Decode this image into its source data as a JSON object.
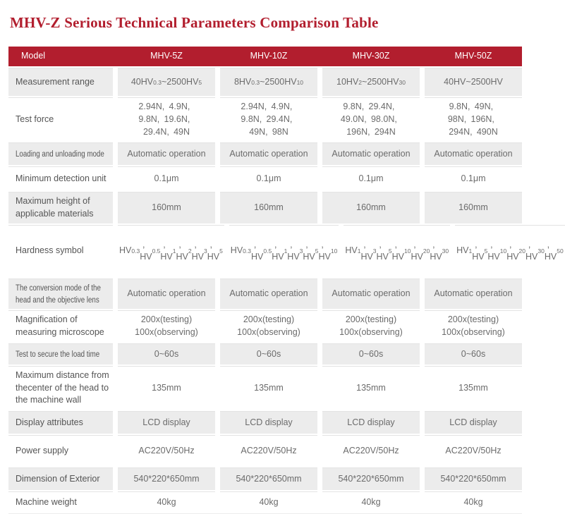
{
  "page": {
    "title": "MHV-Z Serious Technical Parameters Comparison Table"
  },
  "colors": {
    "accent": "#b21e2e",
    "row_alt_bg": "#ececec",
    "row_bg": "#ffffff",
    "label_text": "#555555",
    "value_text": "#6b6b6b",
    "line": "#e3e3e3",
    "header_text": "#ffffff"
  },
  "table": {
    "header": {
      "model_label": "Model",
      "columns": [
        "MHV-5Z",
        "MHV-10Z",
        "MHV-30Z",
        "MHV-50Z"
      ]
    },
    "rows": [
      {
        "label": "Measurement range",
        "values": [
          "40HV{0.3}~2500HV{5}",
          "8HV{0.3}~2500HV{10}",
          "10HV{2}~2500HV{30}",
          "40HV~2500HV"
        ]
      },
      {
        "label": "Test force",
        "values": [
          "2.94N、4.9N、\n9.8N、19.6N、\n29.4N、49N",
          "2.94N、4.9N、\n9.8N、29.4N、\n49N、98N",
          "9.8N、29.4N、\n49.0N、98.0N、\n196N、294N",
          "9.8N、49N、\n98N、196N、\n294N、490N"
        ]
      },
      {
        "label": "Loading and unloading mode",
        "values": [
          "Automatic operation",
          "Automatic operation",
          "Automatic operation",
          "Automatic operation"
        ]
      },
      {
        "label": "Minimum detection unit",
        "values": [
          "0.1μm",
          "0.1μm",
          "0.1μm",
          "0.1μm"
        ]
      },
      {
        "label": "Maximum height of applicable materials",
        "values": [
          "160mm",
          "160mm",
          "160mm",
          "160mm"
        ]
      },
      {
        "label": "Hardness symbol",
        "values": [
          "HV{0.3}、HV{0.5}、\nHV{1}、HV{2}、\nHV{3}、HV{5}",
          "HV{0.3}、HV{0.5}、\nHV{1}、HV{3}、\nHV{5}、HV{10}",
          "HV{1}、HV{3}、\nHV{5}、HV{10}、\nHV{20}、HV{30}",
          "HV{1}、HV{5}、\nHV{10}、HV{20}、\nHV{30}、HV{50}"
        ]
      },
      {
        "label": "The conversion mode of the\nhead and the objective lens",
        "values": [
          "Automatic operation",
          "Automatic operation",
          "Automatic operation",
          "Automatic operation"
        ]
      },
      {
        "label": "Magnification of measuring microscope",
        "values": [
          "200x(testing)\n100x(observing)",
          "200x(testing)\n100x(observing)",
          "200x(testing)\n100x(observing)",
          "200x(testing)\n100x(observing)"
        ]
      },
      {
        "label": "Test to secure the load time",
        "values": [
          "0~60s",
          "0~60s",
          "0~60s",
          "0~60s"
        ]
      },
      {
        "label": "Maximum distance from thecenter of the head to the machine wall",
        "values": [
          "135mm",
          "135mm",
          "135mm",
          "135mm"
        ]
      },
      {
        "label": "Display attributes",
        "values": [
          "LCD display",
          "LCD display",
          "LCD display",
          "LCD display"
        ]
      },
      {
        "label": "Power supply",
        "values": [
          "AC220V/50Hz",
          "AC220V/50Hz",
          "AC220V/50Hz",
          "AC220V/50Hz"
        ]
      },
      {
        "label": "Dimension of Exterior",
        "values": [
          "540*220*650mm",
          "540*220*650mm",
          "540*220*650mm",
          "540*220*650mm"
        ]
      },
      {
        "label": "Machine weight",
        "values": [
          "40kg",
          "40kg",
          "40kg",
          "40kg"
        ]
      }
    ]
  }
}
